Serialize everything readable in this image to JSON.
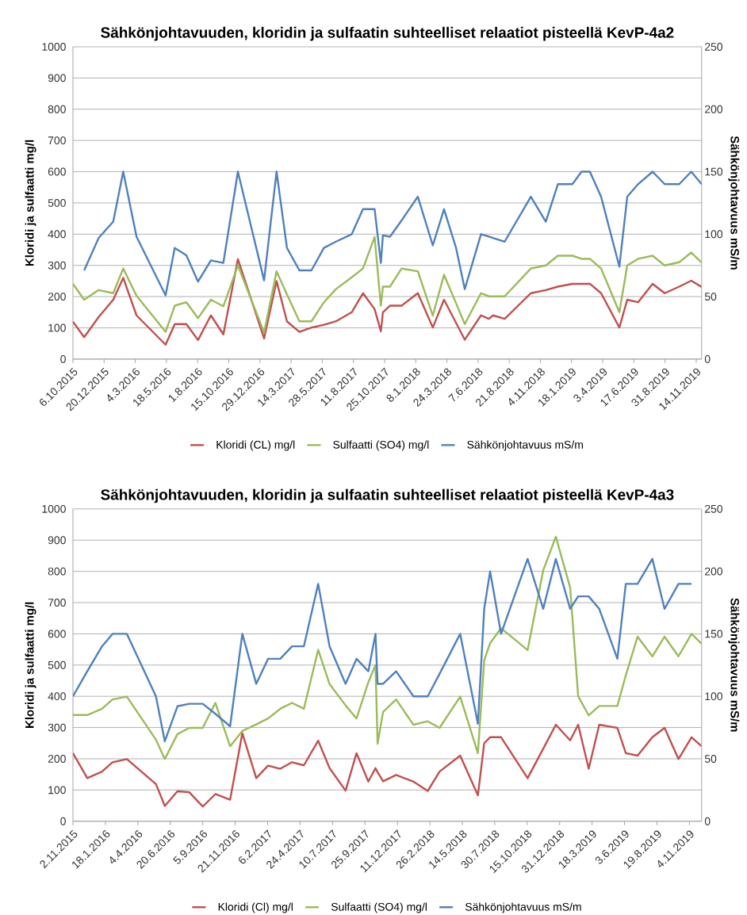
{
  "chart_data": [
    {
      "type": "line",
      "title": "Sähkönjohtavuuden, kloridin ja sulfaatin suhteelliset relaatiot pisteellä KevP-4a2",
      "ylabel": "Kloridi ja sulfaatti mg/l",
      "y2label": "Sähkönjohtavuus mS/m",
      "x": [
        "2015-10-06",
        "2015-11-02",
        "2015-12-07",
        "2016-01-11",
        "2016-02-04",
        "2016-03-07",
        "2016-05-16",
        "2016-06-07",
        "2016-07-05",
        "2016-08-02",
        "2016-09-02",
        "2016-10-02",
        "2016-11-06",
        "2017-01-08",
        "2017-02-07",
        "2017-03-04",
        "2017-04-03",
        "2017-05-02",
        "2017-06-01",
        "2017-06-30",
        "2017-08-07",
        "2017-09-03",
        "2017-10-01",
        "2017-10-16",
        "2017-10-21",
        "2017-11-07",
        "2017-12-05",
        "2018-01-13",
        "2018-02-18",
        "2018-03-17",
        "2018-04-15",
        "2018-05-06",
        "2018-06-14",
        "2018-07-03",
        "2018-07-13",
        "2018-08-10",
        "2018-10-12",
        "2018-11-17",
        "2018-12-16",
        "2019-01-20",
        "2019-02-11",
        "2019-03-03",
        "2019-03-30",
        "2019-05-13",
        "2019-06-01",
        "2019-06-27",
        "2019-08-01",
        "2019-08-30",
        "2019-10-04",
        "2019-11-02",
        "2019-11-27"
      ],
      "series": [
        {
          "name": "Kloridi (CL) mg/l",
          "color": "#c0504d",
          "values": [
            120,
            70,
            135,
            190,
            260,
            140,
            46,
            112,
            112,
            61,
            140,
            79,
            320,
            66,
            250,
            121,
            87,
            101,
            110,
            121,
            150,
            211,
            160,
            89,
            150,
            171,
            171,
            211,
            101,
            190,
            116,
            62,
            140,
            129,
            140,
            129,
            211,
            221,
            232,
            241,
            241,
            241,
            211,
            101,
            190,
            182,
            241,
            211,
            232,
            251,
            231
          ]
        },
        {
          "name": "Sulfaatti (SO4) mg/l",
          "color": "#9bbb59",
          "values": [
            241,
            190,
            221,
            211,
            290,
            203,
            87,
            171,
            182,
            131,
            190,
            169,
            300,
            85,
            281,
            207,
            121,
            121,
            182,
            224,
            262,
            290,
            391,
            171,
            232,
            232,
            290,
            281,
            139,
            270,
            179,
            112,
            211,
            201,
            201,
            201,
            290,
            300,
            331,
            331,
            321,
            321,
            290,
            150,
            300,
            321,
            331,
            300,
            310,
            341,
            309
          ]
        },
        {
          "name": "Sähkönjohtavuus mS/m",
          "color": "#4f81bd",
          "axis": "y2",
          "values": [
            null,
            71,
            97,
            110,
            150,
            98,
            51,
            89,
            83,
            62,
            79,
            77,
            150,
            63,
            150,
            89,
            71,
            71,
            89,
            94,
            100,
            120,
            120,
            77,
            99,
            98,
            111,
            130,
            91,
            120,
            89,
            56,
            100,
            98,
            97,
            94,
            130,
            110,
            140,
            140,
            150,
            150,
            130,
            74,
            130,
            140,
            150,
            140,
            140,
            150,
            140
          ]
        }
      ],
      "xlim": [
        "2015-10-06",
        "2019-11-27"
      ],
      "xticks": [
        {
          "value": "2015-10-06",
          "label": "6.10.2015"
        },
        {
          "value": "2015-12-20",
          "label": "20.12.2015"
        },
        {
          "value": "2016-03-04",
          "label": "4.3.2016"
        },
        {
          "value": "2016-05-18",
          "label": "18.5.2016"
        },
        {
          "value": "2016-08-01",
          "label": "1.8.2016"
        },
        {
          "value": "2016-10-15",
          "label": "15.10.2016"
        },
        {
          "value": "2016-12-29",
          "label": "29.12.2016"
        },
        {
          "value": "2017-03-14",
          "label": "14.3.2017"
        },
        {
          "value": "2017-05-28",
          "label": "28.5.2017"
        },
        {
          "value": "2017-08-11",
          "label": "11.8.2017"
        },
        {
          "value": "2017-10-25",
          "label": "25.10.2017"
        },
        {
          "value": "2018-01-08",
          "label": "8.1.2018"
        },
        {
          "value": "2018-03-24",
          "label": "24.3.2018"
        },
        {
          "value": "2018-06-07",
          "label": "7.6.2018"
        },
        {
          "value": "2018-08-21",
          "label": "21.8.2018"
        },
        {
          "value": "2018-11-04",
          "label": "4.11.2018"
        },
        {
          "value": "2019-01-18",
          "label": "18.1.2019"
        },
        {
          "value": "2019-04-03",
          "label": "3.4.2019"
        },
        {
          "value": "2019-06-17",
          "label": "17.6.2019"
        },
        {
          "value": "2019-08-31",
          "label": "31.8.2019"
        },
        {
          "value": "2019-11-14",
          "label": "14.11.2019"
        }
      ],
      "ylim": [
        0,
        1000
      ],
      "yticks": [
        0,
        100,
        200,
        300,
        400,
        500,
        600,
        700,
        800,
        900,
        1000
      ],
      "y2lim": [
        0,
        250
      ],
      "y2ticks": [
        0,
        50,
        100,
        150,
        200,
        250
      ],
      "grid": "y",
      "legend": "bottom"
    },
    {
      "type": "line",
      "title": "Sähkönjohtavuuden, kloridin ja sulfaatin suhteelliset relaatiot pisteellä KevP-4a3",
      "ylabel": "Kloridi ja sulfaatti mg/l",
      "y2label": "Sähkönjohtavuus mS/m",
      "x": [
        "2015-11-02",
        "2015-12-06",
        "2016-01-10",
        "2016-02-04",
        "2016-03-09",
        "2016-05-17",
        "2016-06-07",
        "2016-07-07",
        "2016-08-04",
        "2016-09-05",
        "2016-10-05",
        "2016-11-09",
        "2016-12-08",
        "2017-01-10",
        "2017-02-07",
        "2017-03-08",
        "2017-04-05",
        "2017-05-03",
        "2017-06-06",
        "2017-07-03",
        "2017-08-10",
        "2017-09-05",
        "2017-10-03",
        "2017-10-20",
        "2017-10-25",
        "2017-11-07",
        "2017-12-08",
        "2018-01-18",
        "2018-02-21",
        "2018-03-21",
        "2018-05-09",
        "2018-06-20",
        "2018-07-05",
        "2018-07-19",
        "2018-08-14",
        "2018-10-16",
        "2018-11-22",
        "2018-12-22",
        "2019-01-25",
        "2019-02-13",
        "2019-03-10",
        "2019-04-04",
        "2019-05-17",
        "2019-06-06",
        "2019-07-04",
        "2019-08-08",
        "2019-09-06",
        "2019-10-09",
        "2019-11-09",
        "2019-12-03"
      ],
      "series": [
        {
          "name": "Kloridi (Cl) mg/l",
          "color": "#c0504d",
          "values": [
            218,
            138,
            159,
            189,
            199,
            119,
            49,
            96,
            93,
            47,
            87,
            69,
            282,
            138,
            178,
            168,
            189,
            179,
            258,
            170,
            98,
            218,
            127,
            170,
            157,
            128,
            148,
            127,
            97,
            159,
            210,
            83,
            250,
            269,
            269,
            138,
            232,
            309,
            259,
            309,
            168,
            309,
            299,
            218,
            210,
            269,
            299,
            199,
            269,
            240
          ]
        },
        {
          "name": "Sulfaatti (SO4) mg/l",
          "color": "#9bbb59",
          "values": [
            340,
            340,
            360,
            390,
            399,
            261,
            199,
            279,
            299,
            299,
            379,
            240,
            289,
            310,
            329,
            360,
            379,
            360,
            549,
            439,
            371,
            329,
            445,
            500,
            248,
            350,
            390,
            309,
            320,
            299,
            399,
            218,
            515,
            570,
            618,
            548,
            803,
            911,
            748,
            400,
            339,
            369,
            369,
            467,
            591,
            528,
            591,
            528,
            600,
            568
          ]
        },
        {
          "name": "Sähkönjohtavuus mS/m",
          "color": "#4f81bd",
          "axis": "y2",
          "values": [
            100,
            120,
            140,
            150,
            150,
            100,
            64,
            92,
            94,
            94,
            86,
            76,
            150,
            110,
            130,
            130,
            140,
            140,
            190,
            140,
            110,
            130,
            120,
            150,
            110,
            110,
            120,
            100,
            100,
            118,
            150,
            78,
            170,
            200,
            150,
            210,
            170,
            210,
            170,
            180,
            180,
            170,
            130,
            190,
            190,
            210,
            170,
            190,
            190,
            null
          ]
        }
      ],
      "xlim": [
        "2015-11-02",
        "2019-12-03"
      ],
      "xticks": [
        {
          "value": "2015-11-02",
          "label": "2.11.2015"
        },
        {
          "value": "2016-01-18",
          "label": "18.1.2016"
        },
        {
          "value": "2016-04-04",
          "label": "4.4.2016"
        },
        {
          "value": "2016-06-20",
          "label": "20.6.2016"
        },
        {
          "value": "2016-09-05",
          "label": "5.9.2016"
        },
        {
          "value": "2016-11-21",
          "label": "21.11.2016"
        },
        {
          "value": "2017-02-06",
          "label": "6.2.2017"
        },
        {
          "value": "2017-04-24",
          "label": "24.4.2017"
        },
        {
          "value": "2017-07-10",
          "label": "10.7.2017"
        },
        {
          "value": "2017-09-25",
          "label": "25.9.2017"
        },
        {
          "value": "2017-12-11",
          "label": "11.12.2017"
        },
        {
          "value": "2018-02-26",
          "label": "26.2.2018"
        },
        {
          "value": "2018-05-14",
          "label": "14.5.2018"
        },
        {
          "value": "2018-07-30",
          "label": "30.7.2018"
        },
        {
          "value": "2018-10-15",
          "label": "15.10.2018"
        },
        {
          "value": "2018-12-31",
          "label": "31.12.2018"
        },
        {
          "value": "2019-03-18",
          "label": "18.3.2019"
        },
        {
          "value": "2019-06-03",
          "label": "3.6.2019"
        },
        {
          "value": "2019-08-19",
          "label": "19.8.2019"
        },
        {
          "value": "2019-11-04",
          "label": "4.11.2019"
        }
      ],
      "ylim": [
        0,
        1000
      ],
      "yticks": [
        0,
        100,
        200,
        300,
        400,
        500,
        600,
        700,
        800,
        900,
        1000
      ],
      "y2lim": [
        0,
        250
      ],
      "y2ticks": [
        0,
        50,
        100,
        150,
        200,
        250
      ],
      "grid": "y",
      "legend": "bottom"
    }
  ]
}
